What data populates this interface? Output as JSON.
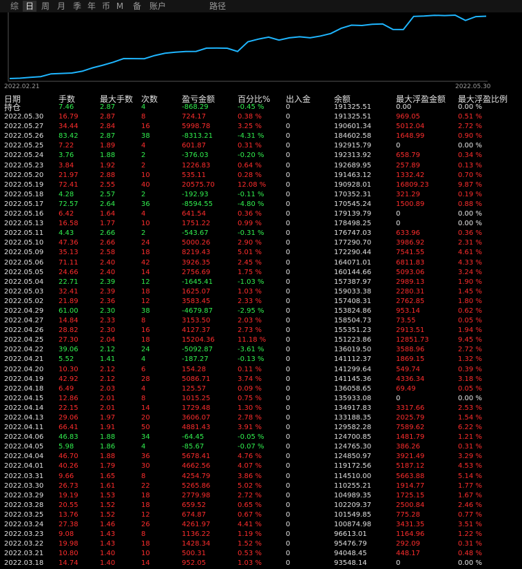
{
  "tabs": [
    "综",
    "日",
    "周",
    "月",
    "季",
    "年",
    "币",
    "M",
    "备",
    "账户",
    "路径"
  ],
  "active_tab": "日",
  "chart": {
    "start_label": "2022.02.21",
    "end_label": "2022.05.30",
    "line_color": "#1fb6ff"
  },
  "columns": [
    "日期",
    "手数",
    "最大手数",
    "次数",
    "盈亏金额",
    "百分比%",
    "出入金",
    "余额",
    "最大浮盈金额",
    "最大浮盈比例"
  ],
  "holding": {
    "date": "持仓",
    "lots": "7.46",
    "max_lots": "2.87",
    "count": "4",
    "pnl": "-868.29",
    "pct": "-0.45 %",
    "io": "0",
    "balance": "191325.51",
    "max_float": "0.00",
    "max_float_pct": "0.00 %"
  },
  "rows": [
    {
      "date": "2022.05.30",
      "lots": "16.79",
      "max_lots": "2.87",
      "count": "8",
      "pnl": "724.17",
      "pct": "0.38 %",
      "io": "0",
      "balance": "191325.51",
      "max_float": "969.05",
      "max_float_pct": "0.51 %"
    },
    {
      "date": "2022.05.27",
      "lots": "34.44",
      "max_lots": "2.84",
      "count": "16",
      "pnl": "5998.78",
      "pct": "3.25 %",
      "io": "0",
      "balance": "190601.34",
      "max_float": "5012.04",
      "max_float_pct": "2.72 %"
    },
    {
      "date": "2022.05.26",
      "lots": "83.42",
      "max_lots": "2.87",
      "count": "38",
      "pnl": "-8313.21",
      "pct": "-4.31 %",
      "io": "0",
      "balance": "184602.58",
      "max_float": "1648.99",
      "max_float_pct": "0.90 %"
    },
    {
      "date": "2022.05.25",
      "lots": "7.22",
      "max_lots": "1.89",
      "count": "4",
      "pnl": "601.87",
      "pct": "0.31 %",
      "io": "0",
      "balance": "192915.79",
      "max_float": "0",
      "max_float_pct": "0.00 %"
    },
    {
      "date": "2022.05.24",
      "lots": "3.76",
      "max_lots": "1.88",
      "count": "2",
      "pnl": "-376.03",
      "pct": "-0.20 %",
      "io": "0",
      "balance": "192313.92",
      "max_float": "658.79",
      "max_float_pct": "0.34 %"
    },
    {
      "date": "2022.05.23",
      "lots": "3.84",
      "max_lots": "1.92",
      "count": "2",
      "pnl": "1226.83",
      "pct": "0.64 %",
      "io": "0",
      "balance": "192689.95",
      "max_float": "257.89",
      "max_float_pct": "0.13 %"
    },
    {
      "date": "2022.05.20",
      "lots": "21.97",
      "max_lots": "2.88",
      "count": "10",
      "pnl": "535.11",
      "pct": "0.28 %",
      "io": "0",
      "balance": "191463.12",
      "max_float": "1332.42",
      "max_float_pct": "0.70 %"
    },
    {
      "date": "2022.05.19",
      "lots": "72.41",
      "max_lots": "2.55",
      "count": "40",
      "pnl": "20575.70",
      "pct": "12.08 %",
      "io": "0",
      "balance": "190928.01",
      "max_float": "16809.23",
      "max_float_pct": "9.87 %"
    },
    {
      "date": "2022.05.18",
      "lots": "4.28",
      "max_lots": "2.57",
      "count": "2",
      "pnl": "-192.93",
      "pct": "-0.11 %",
      "io": "0",
      "balance": "170352.31",
      "max_float": "321.29",
      "max_float_pct": "0.19 %"
    },
    {
      "date": "2022.05.17",
      "lots": "72.57",
      "max_lots": "2.64",
      "count": "36",
      "pnl": "-8594.55",
      "pct": "-4.80 %",
      "io": "0",
      "balance": "170545.24",
      "max_float": "1500.89",
      "max_float_pct": "0.88 %"
    },
    {
      "date": "2022.05.16",
      "lots": "6.42",
      "max_lots": "1.64",
      "count": "4",
      "pnl": "641.54",
      "pct": "0.36 %",
      "io": "0",
      "balance": "179139.79",
      "max_float": "0",
      "max_float_pct": "0.00 %"
    },
    {
      "date": "2022.05.13",
      "lots": "16.58",
      "max_lots": "1.77",
      "count": "10",
      "pnl": "1751.22",
      "pct": "0.99 %",
      "io": "0",
      "balance": "178498.25",
      "max_float": "0",
      "max_float_pct": "0.00 %"
    },
    {
      "date": "2022.05.11",
      "lots": "4.43",
      "max_lots": "2.66",
      "count": "2",
      "pnl": "-543.67",
      "pct": "-0.31 %",
      "io": "0",
      "balance": "176747.03",
      "max_float": "633.96",
      "max_float_pct": "0.36 %"
    },
    {
      "date": "2022.05.10",
      "lots": "47.36",
      "max_lots": "2.66",
      "count": "24",
      "pnl": "5000.26",
      "pct": "2.90 %",
      "io": "0",
      "balance": "177290.70",
      "max_float": "3986.92",
      "max_float_pct": "2.31 %"
    },
    {
      "date": "2022.05.09",
      "lots": "35.13",
      "max_lots": "2.58",
      "count": "18",
      "pnl": "8219.43",
      "pct": "5.01 %",
      "io": "0",
      "balance": "172290.44",
      "max_float": "7541.55",
      "max_float_pct": "4.61 %"
    },
    {
      "date": "2022.05.06",
      "lots": "71.11",
      "max_lots": "2.40",
      "count": "42",
      "pnl": "3926.35",
      "pct": "2.45 %",
      "io": "0",
      "balance": "164071.01",
      "max_float": "6811.83",
      "max_float_pct": "4.33 %"
    },
    {
      "date": "2022.05.05",
      "lots": "24.66",
      "max_lots": "2.40",
      "count": "14",
      "pnl": "2756.69",
      "pct": "1.75 %",
      "io": "0",
      "balance": "160144.66",
      "max_float": "5093.06",
      "max_float_pct": "3.24 %"
    },
    {
      "date": "2022.05.04",
      "lots": "22.71",
      "max_lots": "2.39",
      "count": "12",
      "pnl": "-1645.41",
      "pct": "-1.03 %",
      "io": "0",
      "balance": "157387.97",
      "max_float": "2989.13",
      "max_float_pct": "1.90 %"
    },
    {
      "date": "2022.05.03",
      "lots": "32.41",
      "max_lots": "2.39",
      "count": "18",
      "pnl": "1625.07",
      "pct": "1.03 %",
      "io": "0",
      "balance": "159033.38",
      "max_float": "2280.31",
      "max_float_pct": "1.45 %"
    },
    {
      "date": "2022.05.02",
      "lots": "21.89",
      "max_lots": "2.36",
      "count": "12",
      "pnl": "3583.45",
      "pct": "2.33 %",
      "io": "0",
      "balance": "157408.31",
      "max_float": "2762.85",
      "max_float_pct": "1.80 %"
    },
    {
      "date": "2022.04.29",
      "lots": "61.00",
      "max_lots": "2.30",
      "count": "38",
      "pnl": "-4679.87",
      "pct": "-2.95 %",
      "io": "0",
      "balance": "153824.86",
      "max_float": "953.14",
      "max_float_pct": "0.62 %"
    },
    {
      "date": "2022.04.27",
      "lots": "14.84",
      "max_lots": "2.33",
      "count": "8",
      "pnl": "3153.50",
      "pct": "2.03 %",
      "io": "0",
      "balance": "158504.73",
      "max_float": "73.55",
      "max_float_pct": "0.05 %"
    },
    {
      "date": "2022.04.26",
      "lots": "28.82",
      "max_lots": "2.30",
      "count": "16",
      "pnl": "4127.37",
      "pct": "2.73 %",
      "io": "0",
      "balance": "155351.23",
      "max_float": "2913.51",
      "max_float_pct": "1.94 %"
    },
    {
      "date": "2022.04.25",
      "lots": "27.30",
      "max_lots": "2.04",
      "count": "18",
      "pnl": "15204.36",
      "pct": "11.18 %",
      "io": "0",
      "balance": "151223.86",
      "max_float": "12851.73",
      "max_float_pct": "9.45 %"
    },
    {
      "date": "2022.04.22",
      "lots": "39.06",
      "max_lots": "2.12",
      "count": "24",
      "pnl": "-5092.87",
      "pct": "-3.61 %",
      "io": "0",
      "balance": "136019.50",
      "max_float": "3588.96",
      "max_float_pct": "2.72 %"
    },
    {
      "date": "2022.04.21",
      "lots": "5.52",
      "max_lots": "1.41",
      "count": "4",
      "pnl": "-187.27",
      "pct": "-0.13 %",
      "io": "0",
      "balance": "141112.37",
      "max_float": "1869.15",
      "max_float_pct": "1.32 %"
    },
    {
      "date": "2022.04.20",
      "lots": "10.30",
      "max_lots": "2.12",
      "count": "6",
      "pnl": "154.28",
      "pct": "0.11 %",
      "io": "0",
      "balance": "141299.64",
      "max_float": "549.74",
      "max_float_pct": "0.39 %"
    },
    {
      "date": "2022.04.19",
      "lots": "42.92",
      "max_lots": "2.12",
      "count": "28",
      "pnl": "5086.71",
      "pct": "3.74 %",
      "io": "0",
      "balance": "141145.36",
      "max_float": "4336.34",
      "max_float_pct": "3.18 %"
    },
    {
      "date": "2022.04.18",
      "lots": "6.49",
      "max_lots": "2.03",
      "count": "4",
      "pnl": "125.57",
      "pct": "0.09 %",
      "io": "0",
      "balance": "136058.65",
      "max_float": "69.49",
      "max_float_pct": "0.05 %"
    },
    {
      "date": "2022.04.15",
      "lots": "12.86",
      "max_lots": "2.01",
      "count": "8",
      "pnl": "1015.25",
      "pct": "0.75 %",
      "io": "0",
      "balance": "135933.08",
      "max_float": "0",
      "max_float_pct": "0.00 %"
    },
    {
      "date": "2022.04.14",
      "lots": "22.15",
      "max_lots": "2.01",
      "count": "14",
      "pnl": "1729.48",
      "pct": "1.30 %",
      "io": "0",
      "balance": "134917.83",
      "max_float": "3317.66",
      "max_float_pct": "2.53 %"
    },
    {
      "date": "2022.04.13",
      "lots": "29.06",
      "max_lots": "1.97",
      "count": "20",
      "pnl": "3606.07",
      "pct": "2.78 %",
      "io": "0",
      "balance": "133188.35",
      "max_float": "2025.79",
      "max_float_pct": "1.54 %"
    },
    {
      "date": "2022.04.11",
      "lots": "66.41",
      "max_lots": "1.91",
      "count": "50",
      "pnl": "4881.43",
      "pct": "3.91 %",
      "io": "0",
      "balance": "129582.28",
      "max_float": "7589.62",
      "max_float_pct": "6.22 %"
    },
    {
      "date": "2022.04.06",
      "lots": "46.83",
      "max_lots": "1.88",
      "count": "34",
      "pnl": "-64.45",
      "pct": "-0.05 %",
      "io": "0",
      "balance": "124700.85",
      "max_float": "1481.79",
      "max_float_pct": "1.21 %"
    },
    {
      "date": "2022.04.05",
      "lots": "5.98",
      "max_lots": "1.86",
      "count": "4",
      "pnl": "-85.67",
      "pct": "-0.07 %",
      "io": "0",
      "balance": "124765.30",
      "max_float": "386.26",
      "max_float_pct": "0.31 %"
    },
    {
      "date": "2022.04.04",
      "lots": "46.70",
      "max_lots": "1.88",
      "count": "36",
      "pnl": "5678.41",
      "pct": "4.76 %",
      "io": "0",
      "balance": "124850.97",
      "max_float": "3921.49",
      "max_float_pct": "3.29 %"
    },
    {
      "date": "2022.04.01",
      "lots": "40.26",
      "max_lots": "1.79",
      "count": "30",
      "pnl": "4662.56",
      "pct": "4.07 %",
      "io": "0",
      "balance": "119172.56",
      "max_float": "5187.12",
      "max_float_pct": "4.53 %"
    },
    {
      "date": "2022.03.31",
      "lots": "9.66",
      "max_lots": "1.65",
      "count": "8",
      "pnl": "4254.79",
      "pct": "3.86 %",
      "io": "0",
      "balance": "114510.00",
      "max_float": "5663.88",
      "max_float_pct": "5.14 %"
    },
    {
      "date": "2022.03.30",
      "lots": "26.73",
      "max_lots": "1.61",
      "count": "22",
      "pnl": "5265.86",
      "pct": "5.02 %",
      "io": "0",
      "balance": "110255.21",
      "max_float": "1914.77",
      "max_float_pct": "1.77 %"
    },
    {
      "date": "2022.03.29",
      "lots": "19.19",
      "max_lots": "1.53",
      "count": "18",
      "pnl": "2779.98",
      "pct": "2.72 %",
      "io": "0",
      "balance": "104989.35",
      "max_float": "1725.15",
      "max_float_pct": "1.67 %"
    },
    {
      "date": "2022.03.28",
      "lots": "20.55",
      "max_lots": "1.52",
      "count": "18",
      "pnl": "659.52",
      "pct": "0.65 %",
      "io": "0",
      "balance": "102209.37",
      "max_float": "2500.84",
      "max_float_pct": "2.46 %"
    },
    {
      "date": "2022.03.25",
      "lots": "13.76",
      "max_lots": "1.52",
      "count": "12",
      "pnl": "674.87",
      "pct": "0.67 %",
      "io": "0",
      "balance": "101549.85",
      "max_float": "775.28",
      "max_float_pct": "0.77 %"
    },
    {
      "date": "2022.03.24",
      "lots": "27.38",
      "max_lots": "1.46",
      "count": "26",
      "pnl": "4261.97",
      "pct": "4.41 %",
      "io": "0",
      "balance": "100874.98",
      "max_float": "3431.35",
      "max_float_pct": "3.51 %"
    },
    {
      "date": "2022.03.23",
      "lots": "9.08",
      "max_lots": "1.43",
      "count": "8",
      "pnl": "1136.22",
      "pct": "1.19 %",
      "io": "0",
      "balance": "96613.01",
      "max_float": "1164.96",
      "max_float_pct": "1.22 %"
    },
    {
      "date": "2022.03.22",
      "lots": "19.98",
      "max_lots": "1.43",
      "count": "18",
      "pnl": "1428.34",
      "pct": "1.52 %",
      "io": "0",
      "balance": "95476.79",
      "max_float": "292.09",
      "max_float_pct": "0.31 %"
    },
    {
      "date": "2022.03.21",
      "lots": "10.80",
      "max_lots": "1.40",
      "count": "10",
      "pnl": "500.31",
      "pct": "0.53 %",
      "io": "0",
      "balance": "94048.45",
      "max_float": "448.17",
      "max_float_pct": "0.48 %"
    },
    {
      "date": "2022.03.18",
      "lots": "14.74",
      "max_lots": "1.40",
      "count": "14",
      "pnl": "952.05",
      "pct": "1.03 %",
      "io": "0",
      "balance": "93548.14",
      "max_float": "0",
      "max_float_pct": "0.00 %"
    }
  ]
}
